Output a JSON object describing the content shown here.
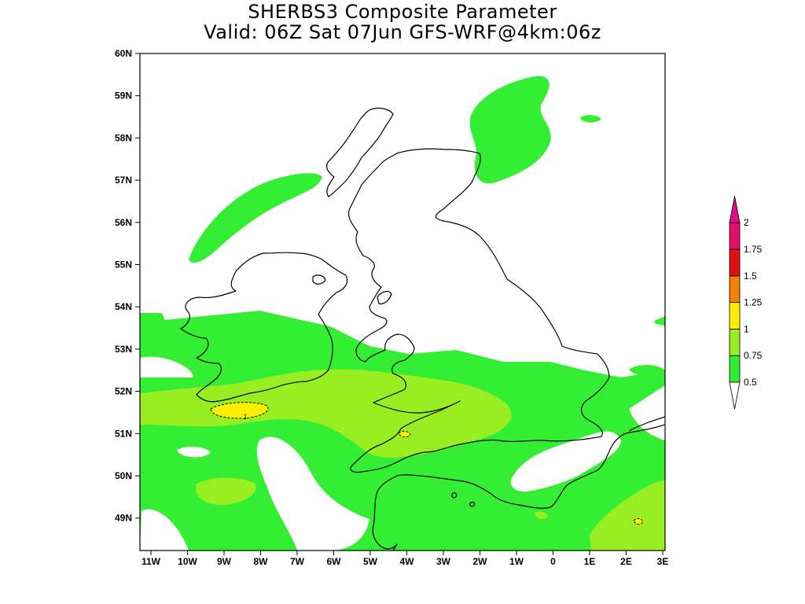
{
  "title": {
    "line1": "SHERBS3 Composite Parameter",
    "line2": "Valid: 06Z Sat 07Jun GFS-WRF@4km:06z"
  },
  "axes": {
    "lat_labels": [
      "60N",
      "59N",
      "58N",
      "57N",
      "56N",
      "55N",
      "54N",
      "53N",
      "52N",
      "51N",
      "50N",
      "49N"
    ],
    "lon_labels": [
      "11W",
      "10W",
      "9W",
      "8W",
      "7W",
      "6W",
      "5W",
      "4W",
      "3W",
      "2W",
      "1W",
      "0",
      "1E",
      "2E",
      "3E"
    ]
  },
  "legend": {
    "levels": [
      "0.5",
      "0.75",
      "1",
      "1.25",
      "1.5",
      "1.75",
      "2"
    ],
    "colors": {
      "0.5-0.75": "#33ee33",
      "0.75-1": "#99ee22",
      "1-1.25": "#ffee00",
      "1.25-1.5": "#f08000",
      "1.5-1.75": "#e01010",
      "1.75-2": "#e0106a",
      "above-2": "#e0108a"
    }
  },
  "map_colors": {
    "field_low": "#33ee33",
    "field_mid": "#99ee22",
    "field_high": "#ffee00",
    "coastline": "#000000",
    "background": "#ffffff"
  },
  "contour_annotations": [
    "1"
  ]
}
